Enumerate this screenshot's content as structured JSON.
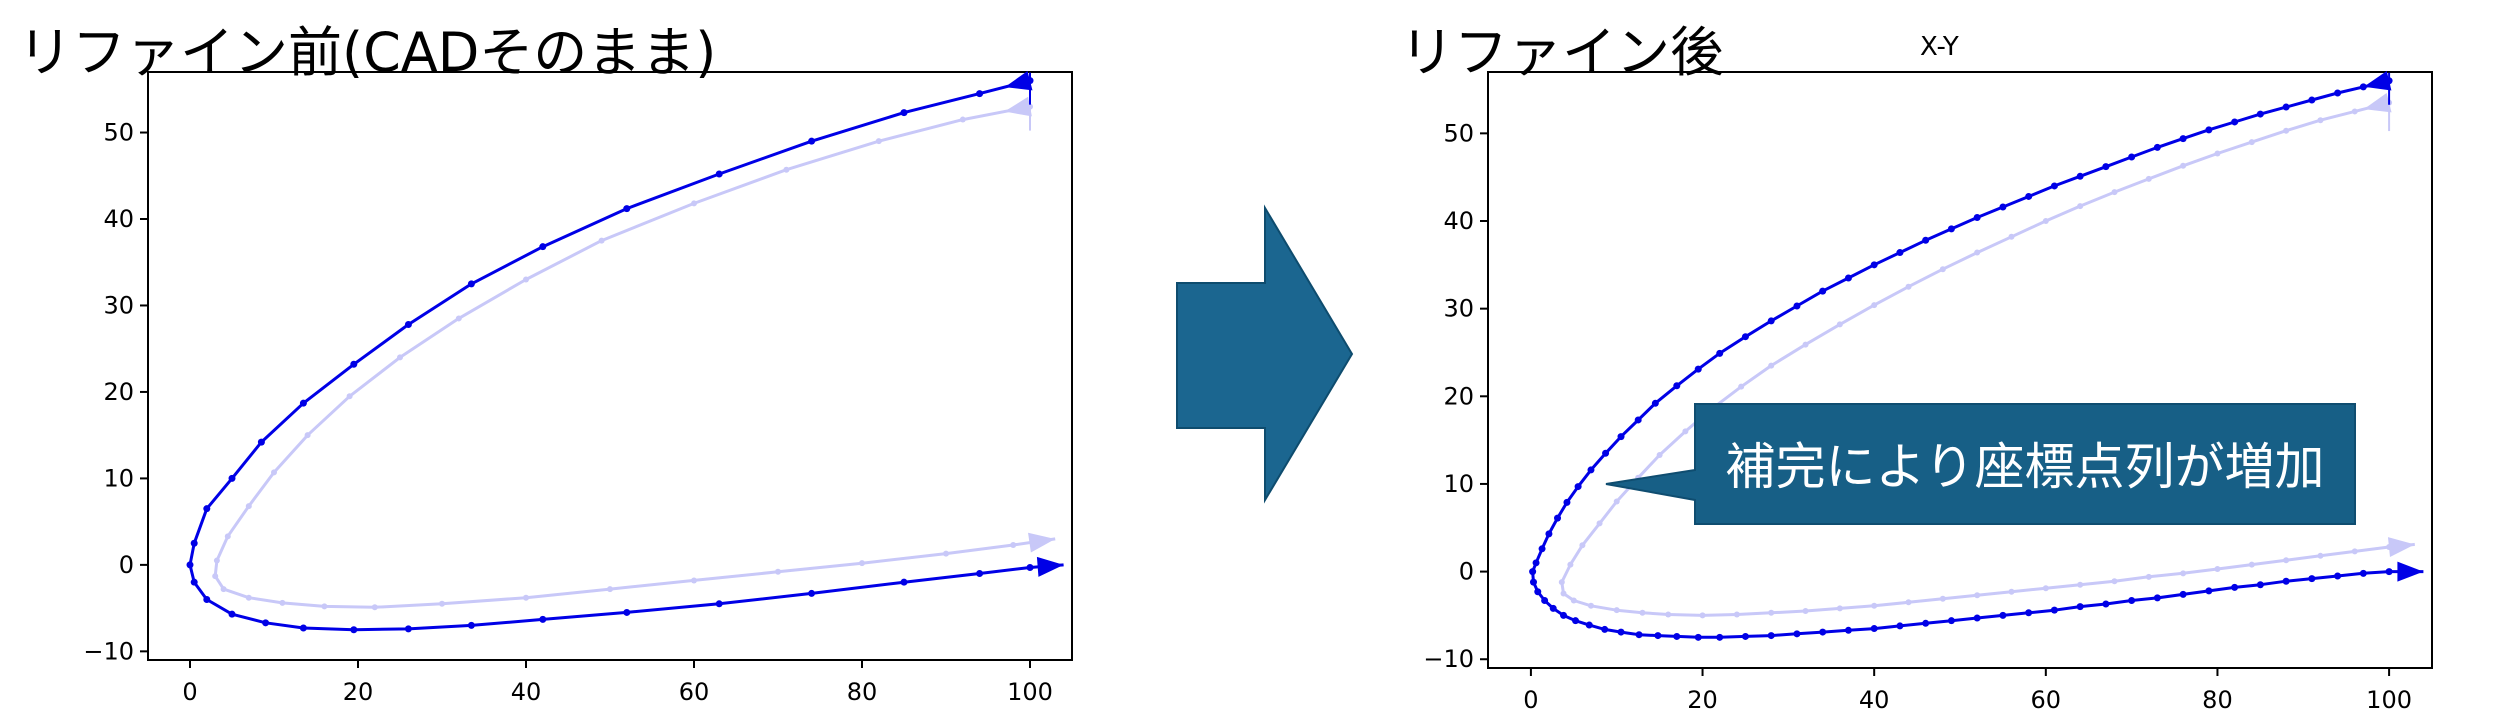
{
  "panels": {
    "left_title": "リファイン前(CADそのまま)",
    "right_title": "リファイン後",
    "right_subtitle": "X-Y",
    "callout": "補完により座標点列が増加"
  },
  "colors": {
    "series_main": "#0000e6",
    "series_faint": "#c8c8f8",
    "arrow_fill": "#1b6690",
    "arrow_edge": "#0e4c6e",
    "callout_fill": "#175f86"
  },
  "chart_data": [
    {
      "type": "line",
      "title": "",
      "xlabel": "",
      "ylabel": "",
      "xlim": [
        -5,
        105
      ],
      "ylim": [
        -11,
        57
      ],
      "x_ticks": [
        0,
        20,
        40,
        60,
        80,
        100
      ],
      "y_ticks": [
        -10,
        0,
        10,
        20,
        30,
        40,
        50
      ],
      "x_tick_labels": [
        "0",
        "20",
        "40",
        "60",
        "80",
        "100"
      ],
      "y_tick_labels": [
        "−10",
        "0",
        "10",
        "20",
        "30",
        "40",
        "50"
      ],
      "series": [
        {
          "style": "main",
          "points": [
            [
              100,
              56
            ],
            [
              94,
              54.5
            ],
            [
              85,
              52.3
            ],
            [
              74,
              49
            ],
            [
              63,
              45.2
            ],
            [
              52,
              41.2
            ],
            [
              42,
              36.8
            ],
            [
              33.5,
              32.5
            ],
            [
              26,
              27.8
            ],
            [
              19.5,
              23.2
            ],
            [
              13.5,
              18.7
            ],
            [
              8.5,
              14.2
            ],
            [
              5,
              10
            ],
            [
              2,
              6.5
            ],
            [
              0.5,
              2.5
            ],
            [
              0,
              0
            ],
            [
              0.5,
              -2
            ],
            [
              2,
              -4
            ],
            [
              5,
              -5.7
            ],
            [
              9,
              -6.7
            ],
            [
              13.5,
              -7.3
            ],
            [
              19.5,
              -7.5
            ],
            [
              26,
              -7.4
            ],
            [
              33.5,
              -7
            ],
            [
              42,
              -6.3
            ],
            [
              52,
              -5.5
            ],
            [
              63,
              -4.5
            ],
            [
              74,
              -3.3
            ],
            [
              85,
              -2
            ],
            [
              94,
              -1
            ],
            [
              100,
              -0.3
            ],
            [
              104,
              0
            ]
          ]
        },
        {
          "style": "faint",
          "points": [
            [
              100,
              53
            ],
            [
              92,
              51.5
            ],
            [
              82,
              49
            ],
            [
              71,
              45.7
            ],
            [
              60,
              41.8
            ],
            [
              49,
              37.5
            ],
            [
              40,
              33
            ],
            [
              32,
              28.5
            ],
            [
              25,
              24
            ],
            [
              19,
              19.5
            ],
            [
              14,
              15
            ],
            [
              10,
              10.7
            ],
            [
              7,
              6.8
            ],
            [
              4.5,
              3.3
            ],
            [
              3.2,
              0.5
            ],
            [
              3,
              -1.3
            ],
            [
              4,
              -2.8
            ],
            [
              7,
              -3.8
            ],
            [
              11,
              -4.4
            ],
            [
              16,
              -4.8
            ],
            [
              22,
              -4.9
            ],
            [
              30,
              -4.5
            ],
            [
              40,
              -3.8
            ],
            [
              50,
              -2.8
            ],
            [
              60,
              -1.8
            ],
            [
              70,
              -0.8
            ],
            [
              80,
              0.2
            ],
            [
              90,
              1.3
            ],
            [
              98,
              2.3
            ],
            [
              103,
              3
            ]
          ]
        }
      ]
    },
    {
      "type": "line",
      "title": "X-Y",
      "xlabel": "",
      "ylabel": "",
      "xlim": [
        -5,
        105
      ],
      "ylim": [
        -11,
        57
      ],
      "x_ticks": [
        0,
        20,
        40,
        60,
        80,
        100
      ],
      "y_ticks": [
        -10,
        0,
        10,
        20,
        30,
        40,
        50
      ],
      "x_tick_labels": [
        "0",
        "20",
        "40",
        "60",
        "80",
        "100"
      ],
      "y_tick_labels": [
        "−10",
        "0",
        "10",
        "20",
        "30",
        "40",
        "50"
      ],
      "series": [
        {
          "style": "main",
          "points": [
            [
              100,
              56
            ],
            [
              97,
              55.3
            ],
            [
              94,
              54.6
            ],
            [
              91,
              53.8
            ],
            [
              88,
              53
            ],
            [
              85,
              52.2
            ],
            [
              82,
              51.3
            ],
            [
              79,
              50.4
            ],
            [
              76,
              49.4
            ],
            [
              73,
              48.4
            ],
            [
              70,
              47.3
            ],
            [
              67,
              46.2
            ],
            [
              64,
              45.1
            ],
            [
              61,
              44
            ],
            [
              58,
              42.8
            ],
            [
              55,
              41.6
            ],
            [
              52,
              40.4
            ],
            [
              49,
              39.1
            ],
            [
              46,
              37.8
            ],
            [
              43,
              36.4
            ],
            [
              40,
              35
            ],
            [
              37,
              33.5
            ],
            [
              34,
              32
            ],
            [
              31,
              30.3
            ],
            [
              28,
              28.6
            ],
            [
              25,
              26.8
            ],
            [
              22,
              24.9
            ],
            [
              19.5,
              23.1
            ],
            [
              17,
              21.2
            ],
            [
              14.5,
              19.2
            ],
            [
              12.5,
              17.3
            ],
            [
              10.5,
              15.4
            ],
            [
              8.7,
              13.5
            ],
            [
              7,
              11.6
            ],
            [
              5.5,
              9.7
            ],
            [
              4.2,
              7.9
            ],
            [
              3.1,
              6.1
            ],
            [
              2.1,
              4.3
            ],
            [
              1.3,
              2.6
            ],
            [
              0.6,
              1
            ],
            [
              0.2,
              0
            ],
            [
              0.3,
              -1.2
            ],
            [
              0.8,
              -2.3
            ],
            [
              1.6,
              -3.3
            ],
            [
              2.6,
              -4.2
            ],
            [
              3.8,
              -5
            ],
            [
              5.2,
              -5.6
            ],
            [
              6.8,
              -6.1
            ],
            [
              8.6,
              -6.6
            ],
            [
              10.5,
              -6.9
            ],
            [
              12.6,
              -7.2
            ],
            [
              14.8,
              -7.3
            ],
            [
              17,
              -7.4
            ],
            [
              19.5,
              -7.5
            ],
            [
              22,
              -7.5
            ],
            [
              25,
              -7.4
            ],
            [
              28,
              -7.3
            ],
            [
              31,
              -7.1
            ],
            [
              34,
              -6.9
            ],
            [
              37,
              -6.7
            ],
            [
              40,
              -6.5
            ],
            [
              43,
              -6.2
            ],
            [
              46,
              -5.9
            ],
            [
              49,
              -5.6
            ],
            [
              52,
              -5.3
            ],
            [
              55,
              -5
            ],
            [
              58,
              -4.7
            ],
            [
              61,
              -4.4
            ],
            [
              64,
              -4
            ],
            [
              67,
              -3.7
            ],
            [
              70,
              -3.3
            ],
            [
              73,
              -3
            ],
            [
              76,
              -2.6
            ],
            [
              79,
              -2.2
            ],
            [
              82,
              -1.8
            ],
            [
              85,
              -1.5
            ],
            [
              88,
              -1.1
            ],
            [
              91,
              -0.8
            ],
            [
              94,
              -0.5
            ],
            [
              97,
              -0.2
            ],
            [
              100,
              0
            ],
            [
              104,
              0
            ]
          ]
        },
        {
          "style": "faint",
          "points": [
            [
              100,
              53.5
            ],
            [
              96,
              52.5
            ],
            [
              92,
              51.5
            ],
            [
              88,
              50.3
            ],
            [
              84,
              49
            ],
            [
              80,
              47.7
            ],
            [
              76,
              46.3
            ],
            [
              72,
              44.8
            ],
            [
              68,
              43.3
            ],
            [
              64,
              41.7
            ],
            [
              60,
              40
            ],
            [
              56,
              38.2
            ],
            [
              52,
              36.4
            ],
            [
              48,
              34.5
            ],
            [
              44,
              32.5
            ],
            [
              40,
              30.4
            ],
            [
              36,
              28.2
            ],
            [
              32,
              25.9
            ],
            [
              28,
              23.5
            ],
            [
              24.5,
              21.1
            ],
            [
              21,
              18.5
            ],
            [
              18,
              16
            ],
            [
              15,
              13.3
            ],
            [
              12.5,
              10.7
            ],
            [
              10,
              8
            ],
            [
              8,
              5.5
            ],
            [
              6,
              3
            ],
            [
              4.6,
              0.8
            ],
            [
              3.6,
              -1.2
            ],
            [
              3.8,
              -2.5
            ],
            [
              5,
              -3.3
            ],
            [
              7,
              -3.9
            ],
            [
              10,
              -4.4
            ],
            [
              13,
              -4.7
            ],
            [
              16,
              -4.9
            ],
            [
              20,
              -5
            ],
            [
              24,
              -4.9
            ],
            [
              28,
              -4.7
            ],
            [
              32,
              -4.5
            ],
            [
              36,
              -4.2
            ],
            [
              40,
              -3.9
            ],
            [
              44,
              -3.5
            ],
            [
              48,
              -3.1
            ],
            [
              52,
              -2.7
            ],
            [
              56,
              -2.3
            ],
            [
              60,
              -1.9
            ],
            [
              64,
              -1.5
            ],
            [
              68,
              -1.1
            ],
            [
              72,
              -0.6
            ],
            [
              76,
              -0.2
            ],
            [
              80,
              0.3
            ],
            [
              84,
              0.8
            ],
            [
              88,
              1.3
            ],
            [
              92,
              1.8
            ],
            [
              96,
              2.3
            ],
            [
              100,
              2.8
            ],
            [
              103,
              3.1
            ]
          ]
        }
      ]
    }
  ]
}
